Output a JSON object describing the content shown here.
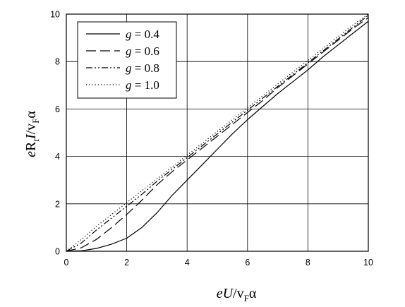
{
  "chart_data": {
    "type": "line",
    "title": "",
    "xlabel": "eU/v_Fα",
    "ylabel": "eR_t I/v_Fα",
    "xlim": [
      0,
      10
    ],
    "ylim": [
      0,
      10
    ],
    "xticks": [
      "0",
      "2",
      "4",
      "6",
      "8",
      "10"
    ],
    "yticks": [
      "0",
      "2",
      "4",
      "6",
      "8",
      "10"
    ],
    "grid": true,
    "legend_position": "top-left",
    "series": [
      {
        "name": "g = 0.4",
        "style": "solid",
        "color": "#000000",
        "x": [
          0,
          0.5,
          1.0,
          1.5,
          2.0,
          2.5,
          3.0,
          3.5,
          4.0,
          4.5,
          5.0,
          5.5,
          6.0,
          6.5,
          7.0,
          7.5,
          8.0,
          8.5,
          9.0,
          9.5,
          10.0
        ],
        "y": [
          0,
          0.02,
          0.12,
          0.3,
          0.55,
          1.0,
          1.62,
          2.35,
          3.0,
          3.65,
          4.3,
          4.95,
          5.55,
          6.1,
          6.65,
          7.15,
          7.65,
          8.2,
          8.7,
          9.2,
          9.7
        ]
      },
      {
        "name": "g = 0.6",
        "style": "long-dash",
        "color": "#000000",
        "x": [
          0,
          0.5,
          1.0,
          1.5,
          2.0,
          2.5,
          3.0,
          3.5,
          4.0,
          4.5,
          5.0,
          5.5,
          6.0,
          6.5,
          7.0,
          7.5,
          8.0,
          8.5,
          9.0,
          9.5,
          10.0
        ],
        "y": [
          0,
          0.15,
          0.5,
          1.0,
          1.55,
          2.15,
          2.8,
          3.35,
          3.85,
          4.35,
          4.85,
          5.35,
          5.85,
          6.35,
          6.9,
          7.4,
          7.9,
          8.4,
          8.9,
          9.4,
          9.85
        ]
      },
      {
        "name": "g = 0.8",
        "style": "dash-dot-dot",
        "color": "#000000",
        "x": [
          0,
          0.5,
          1.0,
          1.5,
          2.0,
          2.5,
          3.0,
          3.5,
          4.0,
          4.5,
          5.0,
          5.5,
          6.0,
          6.5,
          7.0,
          7.5,
          8.0,
          8.5,
          9.0,
          9.5,
          10.0
        ],
        "y": [
          0,
          0.35,
          0.9,
          1.4,
          1.9,
          2.4,
          2.95,
          3.45,
          3.95,
          4.45,
          4.95,
          5.45,
          5.95,
          6.45,
          6.95,
          7.45,
          7.95,
          8.45,
          8.95,
          9.45,
          9.95
        ]
      },
      {
        "name": "g = 1.0",
        "style": "dotted",
        "color": "#000000",
        "x": [
          0,
          0.5,
          1.0,
          1.5,
          2.0,
          2.5,
          3.0,
          3.5,
          4.0,
          4.5,
          5.0,
          5.5,
          6.0,
          6.5,
          7.0,
          7.5,
          8.0,
          8.5,
          9.0,
          9.5,
          10.0
        ],
        "y": [
          0,
          0.5,
          1.05,
          1.55,
          2.05,
          2.55,
          3.05,
          3.55,
          4.05,
          4.55,
          5.05,
          5.55,
          6.05,
          6.55,
          7.05,
          7.55,
          8.05,
          8.55,
          9.05,
          9.55,
          10.0
        ]
      }
    ]
  }
}
